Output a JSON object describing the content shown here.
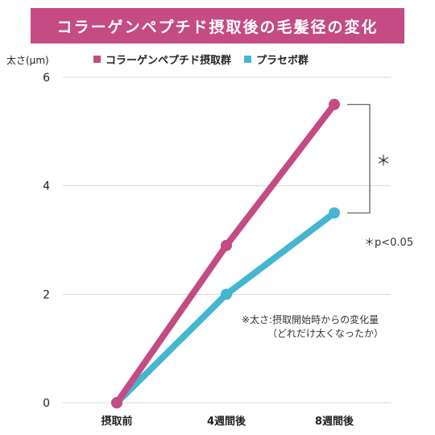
{
  "title": "コラーゲンペプチド摂取後の毛髪径の変化",
  "y_unit_label": "太さ(μm)",
  "colors": {
    "banner": "#c44b84",
    "collagen": "#c44b84",
    "placebo": "#45b6d0",
    "grid": "#d9d9d9",
    "axis_text": "#222222"
  },
  "legend": [
    {
      "label": "コラーゲンペプチド摂取群",
      "color": "#c44b84"
    },
    {
      "label": "プラセボ群",
      "color": "#45b6d0"
    }
  ],
  "annotations": {
    "significance_mark": "＊",
    "p_value": "＊p<0.05",
    "note_line1": "※太さ:摂取開始時からの変化量",
    "note_line2": "（どれだけ太くなったか）"
  },
  "chart_data": {
    "type": "line",
    "categories": [
      "摂取前",
      "4週間後",
      "8週間後"
    ],
    "series": [
      {
        "name": "コラーゲンペプチド摂取群",
        "values": [
          0,
          2.9,
          5.5
        ],
        "color": "#c44b84"
      },
      {
        "name": "プラセボ群",
        "values": [
          0,
          2.0,
          3.5
        ],
        "color": "#45b6d0"
      }
    ],
    "y_ticks": [
      0,
      2,
      4,
      6
    ],
    "ylim": [
      0,
      6
    ],
    "ylabel": "太さ(μm)",
    "grid": true,
    "legend_position": "top"
  }
}
